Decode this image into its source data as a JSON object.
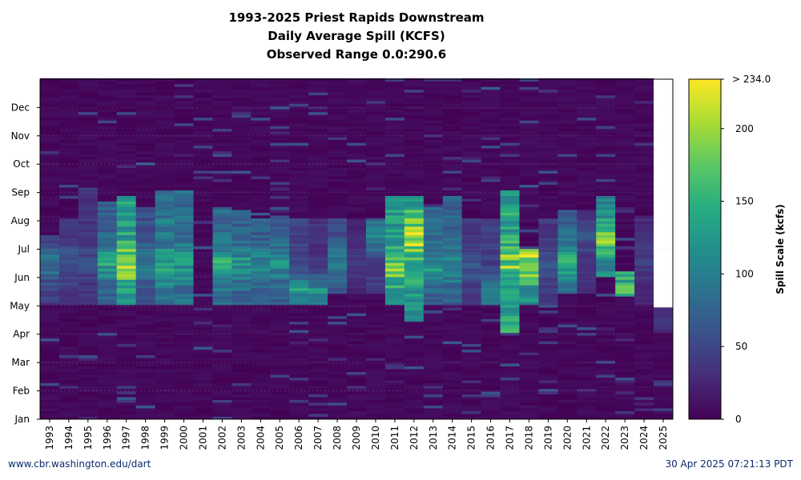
{
  "chart_data": {
    "type": "heatmap",
    "title": "1993-2025 Priest Rapids Downstream",
    "subtitle": "Daily Average Spill (KCFS)",
    "range_text": "Observed Range 0.0:290.6",
    "x_ticks": [
      "1993",
      "1994",
      "1995",
      "1996",
      "1997",
      "1998",
      "1999",
      "2000",
      "2001",
      "2002",
      "2003",
      "2004",
      "2005",
      "2006",
      "2007",
      "2008",
      "2009",
      "2010",
      "2011",
      "2012",
      "2013",
      "2014",
      "2015",
      "2016",
      "2017",
      "2018",
      "2019",
      "2020",
      "2021",
      "2022",
      "2023",
      "2024",
      "2025"
    ],
    "y_ticks": [
      "Jan",
      "Feb",
      "Mar",
      "Apr",
      "May",
      "Jun",
      "Jul",
      "Aug",
      "Sep",
      "Oct",
      "Nov",
      "Dec"
    ],
    "colorbar": {
      "label": "Spill Scale (kcfs)",
      "top_label": "> 234.0",
      "ticks": [
        0,
        50,
        100,
        150,
        200
      ],
      "min": 0,
      "max": 234,
      "colormap": "viridis"
    },
    "data_end": {
      "year": "2025",
      "date": "Apr 30"
    },
    "seasonal_spill_kcfs": [
      {
        "year": "1993",
        "start": "May 01",
        "end": "Jul 15",
        "typical": 45,
        "peak": 95,
        "peak_month": "Jun"
      },
      {
        "year": "1994",
        "start": "May 01",
        "end": "Aug 01",
        "typical": 40,
        "peak": 65,
        "peak_month": "Jun"
      },
      {
        "year": "1995",
        "start": "May 01",
        "end": "Sep 01",
        "typical": 38,
        "peak": 55,
        "peak_month": "Jun"
      },
      {
        "year": "1996",
        "start": "May 01",
        "end": "Aug 20",
        "typical": 80,
        "peak": 135,
        "peak_month": "Jun"
      },
      {
        "year": "1997",
        "start": "May 01",
        "end": "Aug 25",
        "typical": 130,
        "peak": 234,
        "peak_month": "Jun"
      },
      {
        "year": "1998",
        "start": "May 01",
        "end": "Aug 15",
        "typical": 60,
        "peak": 95,
        "peak_month": "Jun"
      },
      {
        "year": "1999",
        "start": "May 01",
        "end": "Sep 01",
        "typical": 95,
        "peak": 145,
        "peak_month": "Jun"
      },
      {
        "year": "2000",
        "start": "May 01",
        "end": "Sep 01",
        "typical": 90,
        "peak": 130,
        "peak_month": "Jun"
      },
      {
        "year": "2001",
        "start": "",
        "end": "",
        "typical": 3,
        "peak": 8,
        "peak_month": ""
      },
      {
        "year": "2002",
        "start": "May 01",
        "end": "Aug 15",
        "typical": 85,
        "peak": 150,
        "peak_month": "Jun"
      },
      {
        "year": "2003",
        "start": "May 01",
        "end": "Aug 10",
        "typical": 80,
        "peak": 125,
        "peak_month": "Jun"
      },
      {
        "year": "2004",
        "start": "May 01",
        "end": "Aug 01",
        "typical": 70,
        "peak": 110,
        "peak_month": "Jun"
      },
      {
        "year": "2005",
        "start": "May 01",
        "end": "Aug 05",
        "typical": 75,
        "peak": 120,
        "peak_month": "Jun"
      },
      {
        "year": "2006",
        "start": "May 01",
        "end": "Aug 01",
        "typical": 50,
        "peak": 130,
        "peak_month": "May"
      },
      {
        "year": "2007",
        "start": "May 01",
        "end": "Aug 01",
        "typical": 35,
        "peak": 120,
        "peak_month": "May"
      },
      {
        "year": "2008",
        "start": "May 15",
        "end": "Aug 01",
        "typical": 55,
        "peak": 110,
        "peak_month": "Jun"
      },
      {
        "year": "2009",
        "start": "May 15",
        "end": "Aug 01",
        "typical": 25,
        "peak": 45,
        "peak_month": "Jun"
      },
      {
        "year": "2010",
        "start": "May 15",
        "end": "Aug 01",
        "typical": 45,
        "peak": 125,
        "peak_month": "Jul"
      },
      {
        "year": "2011",
        "start": "May 01",
        "end": "Aug 25",
        "typical": 130,
        "peak": 200,
        "peak_month": "Jun"
      },
      {
        "year": "2012",
        "start": "Apr 15",
        "end": "Aug 25",
        "typical": 140,
        "peak": 234,
        "peak_month": "Jul"
      },
      {
        "year": "2013",
        "start": "May 01",
        "end": "Aug 15",
        "typical": 80,
        "peak": 130,
        "peak_month": "Jun"
      },
      {
        "year": "2014",
        "start": "May 01",
        "end": "Aug 25",
        "typical": 80,
        "peak": 125,
        "peak_month": "Jun"
      },
      {
        "year": "2015",
        "start": "May 01",
        "end": "Aug 01",
        "typical": 40,
        "peak": 70,
        "peak_month": "Jun"
      },
      {
        "year": "2016",
        "start": "May 01",
        "end": "Aug 01",
        "typical": 45,
        "peak": 110,
        "peak_month": "May"
      },
      {
        "year": "2017",
        "start": "Apr 01",
        "end": "Sep 01",
        "typical": 140,
        "peak": 190,
        "peak_month": "Jun"
      },
      {
        "year": "2018",
        "start": "May 01",
        "end": "Jul 01",
        "typical": 120,
        "peak": 234,
        "peak_month": "Jun"
      },
      {
        "year": "2019",
        "start": "May 01",
        "end": "Aug 01",
        "typical": 40,
        "peak": 60,
        "peak_month": "Jun"
      },
      {
        "year": "2020",
        "start": "May 15",
        "end": "Aug 10",
        "typical": 80,
        "peak": 140,
        "peak_month": "Jun"
      },
      {
        "year": "2021",
        "start": "May 15",
        "end": "Aug 10",
        "typical": 35,
        "peak": 60,
        "peak_month": "Jul"
      },
      {
        "year": "2022",
        "start": "Jun 01",
        "end": "Aug 25",
        "typical": 110,
        "peak": 200,
        "peak_month": "Jul"
      },
      {
        "year": "2023",
        "start": "May 10",
        "end": "Jun 05",
        "typical": 130,
        "peak": 160,
        "peak_month": "May"
      },
      {
        "year": "2024",
        "start": "May 01",
        "end": "Aug 05",
        "typical": 30,
        "peak": 45,
        "peak_month": "Jun"
      },
      {
        "year": "2025",
        "start": "Apr 01",
        "end": "Apr 30",
        "typical": 25,
        "peak": 40,
        "peak_month": "Apr"
      }
    ]
  },
  "footer": {
    "source": "www.cbr.washington.edu/dart",
    "timestamp": "30 Apr 2025 07:21:13 PDT"
  }
}
